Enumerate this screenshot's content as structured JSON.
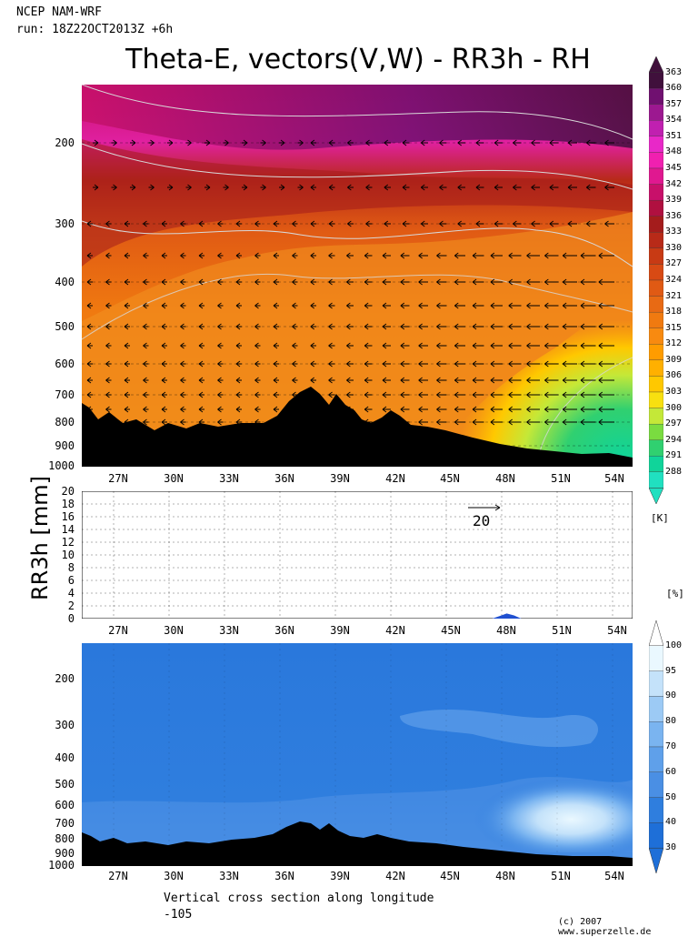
{
  "header": {
    "model": "NCEP NAM-WRF",
    "run": "run: 18Z22OCT2013Z +6h",
    "title": "Theta-E, vectors(V,W) - RR3h - RH"
  },
  "footer": {
    "caption_line1": "Vertical cross section along longitude",
    "caption_line2": "-105",
    "credit": "(c) 2007 www.superzelle.de"
  },
  "colors": {
    "theta_scale": [
      "#20e0c0",
      "#10d49a",
      "#30d070",
      "#7adc40",
      "#c4e838",
      "#f8e010",
      "#ffc800",
      "#ffb000",
      "#ff9c00",
      "#f88a10",
      "#f07a10",
      "#e86a14",
      "#e05a14",
      "#d84a14",
      "#c83a14",
      "#b82a18",
      "#a41c1c",
      "#b01040",
      "#c8106a",
      "#e01890",
      "#f020b0",
      "#e828c8",
      "#c020b0",
      "#9c1890",
      "#701070",
      "#40103c"
    ],
    "rh_scale": [
      "#1e6fd8",
      "#2f7ede",
      "#4a8fe4",
      "#5fa0ea",
      "#7ab4f0",
      "#9ccaf5",
      "#c4e2fa",
      "#eaf8ff"
    ],
    "terrain": "#000000"
  },
  "chart_data": [
    {
      "type": "heatmap",
      "name": "theta-e",
      "ylabel_ticks": [
        "200",
        "300",
        "400",
        "500",
        "600",
        "700",
        "800",
        "900",
        "1000"
      ],
      "xlabel_ticks": [
        "27N",
        "30N",
        "33N",
        "36N",
        "39N",
        "42N",
        "45N",
        "48N",
        "51N",
        "54N"
      ],
      "ylim": [
        1000,
        120
      ],
      "xlim": [
        25.0,
        55.5
      ],
      "colorbar": {
        "unit": "[K]",
        "labels": [
          "363",
          "360",
          "357",
          "354",
          "351",
          "348",
          "345",
          "342",
          "339",
          "336",
          "333",
          "330",
          "327",
          "324",
          "321",
          "318",
          "315",
          "312",
          "309",
          "306",
          "303",
          "300",
          "297",
          "294",
          "291",
          "288"
        ]
      },
      "vector_reference": {
        "label": "20",
        "value": 20
      },
      "grid": true
    },
    {
      "type": "area",
      "name": "RR3h",
      "ylabel": "RR3h [mm]",
      "yticks": [
        "20",
        "18",
        "16",
        "14",
        "12",
        "10",
        "8",
        "6",
        "4",
        "2",
        "0"
      ],
      "ylim": [
        0,
        20
      ],
      "xlabel_ticks": [
        "27N",
        "30N",
        "33N",
        "36N",
        "39N",
        "42N",
        "45N",
        "48N",
        "51N",
        "54N"
      ],
      "series": [
        {
          "x": [
            47.8,
            48.2,
            48.6,
            49.0,
            49.4
          ],
          "values": [
            0,
            0.4,
            0.8,
            0.5,
            0
          ]
        }
      ],
      "grid": true
    },
    {
      "type": "heatmap",
      "name": "RH",
      "ylabel_ticks": [
        "200",
        "300",
        "400",
        "500",
        "600",
        "700",
        "800",
        "900",
        "1000"
      ],
      "xlabel_ticks": [
        "27N",
        "30N",
        "33N",
        "36N",
        "39N",
        "42N",
        "45N",
        "48N",
        "51N",
        "54N"
      ],
      "colorbar": {
        "unit": "[%]",
        "labels": [
          "100",
          "95",
          "90",
          "80",
          "70",
          "60",
          "50",
          "40",
          "30"
        ]
      }
    }
  ]
}
